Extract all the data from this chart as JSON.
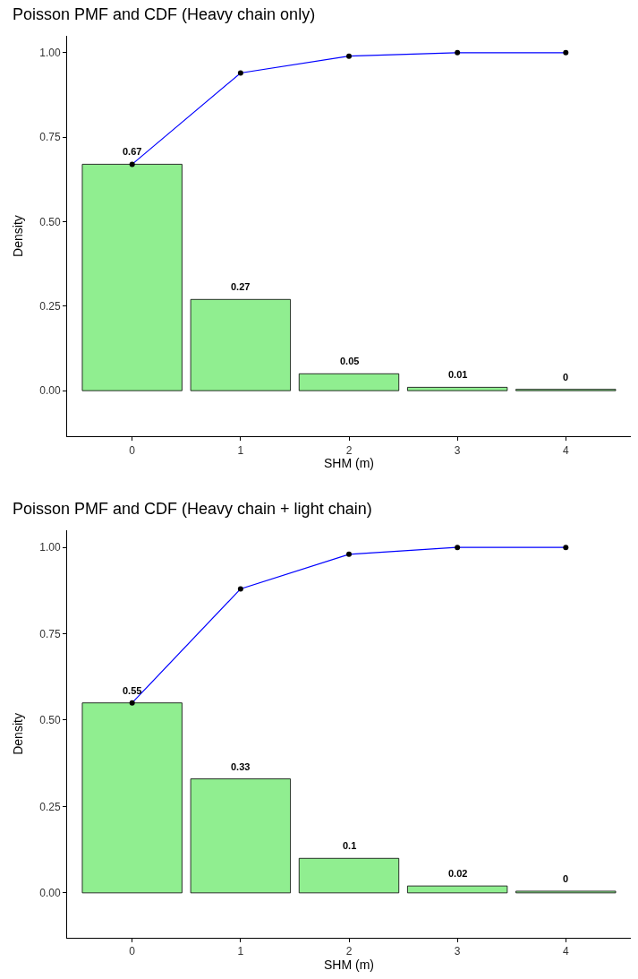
{
  "chart_data": [
    {
      "type": "bar",
      "title": "Poisson PMF and CDF (Heavy chain only)",
      "xlabel": "SHM (m)",
      "ylabel": "Density",
      "categories": [
        "0",
        "1",
        "2",
        "3",
        "4"
      ],
      "series": [
        {
          "color": "#90ee90",
          "values": [
            0.67,
            0.27,
            0.05,
            0.01,
            0.004
          ],
          "value_labels": [
            "0.67",
            "0.27",
            "0.05",
            "0.01",
            "0"
          ]
        },
        {
          "type": "line",
          "color": "#0000ff",
          "marker": "circle",
          "values": [
            0.67,
            0.94,
            0.99,
            1.0,
            1.0
          ]
        }
      ],
      "ylim": [
        -0.135,
        1.05
      ],
      "yticks": [
        {
          "value": 0,
          "label": "0.00"
        },
        {
          "value": 0.25,
          "label": "0.25"
        },
        {
          "value": 0.5,
          "label": "0.50"
        },
        {
          "value": 0.75,
          "label": "0.75"
        },
        {
          "value": 1,
          "label": "1.00"
        }
      ]
    },
    {
      "type": "bar",
      "title": "Poisson PMF and CDF (Heavy chain + light chain)",
      "xlabel": "SHM (m)",
      "ylabel": "Density",
      "categories": [
        "0",
        "1",
        "2",
        "3",
        "4"
      ],
      "series": [
        {
          "color": "#90ee90",
          "values": [
            0.55,
            0.33,
            0.1,
            0.02,
            0.005
          ],
          "value_labels": [
            "0.55",
            "0.33",
            "0.1",
            "0.02",
            "0"
          ]
        },
        {
          "type": "line",
          "color": "#0000ff",
          "marker": "circle",
          "values": [
            0.55,
            0.88,
            0.98,
            1.0,
            1.0
          ]
        }
      ],
      "ylim": [
        -0.13,
        1.05
      ],
      "yticks": [
        {
          "value": 0,
          "label": "0.00"
        },
        {
          "value": 0.25,
          "label": "0.25"
        },
        {
          "value": 0.5,
          "label": "0.50"
        },
        {
          "value": 0.75,
          "label": "0.75"
        },
        {
          "value": 1,
          "label": "1.00"
        }
      ]
    }
  ]
}
